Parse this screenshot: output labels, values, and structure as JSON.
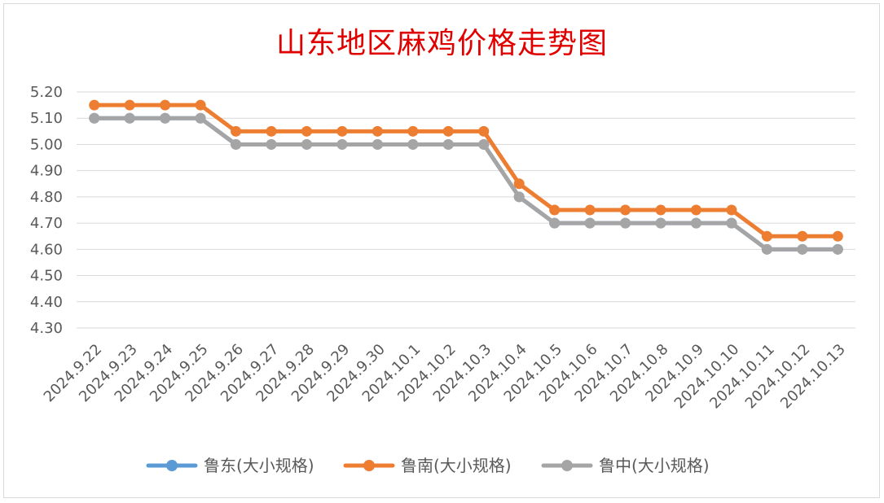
{
  "chart_data": {
    "type": "line",
    "title": "山东地区麻鸡价格走势图",
    "xlabel": "",
    "ylabel": "",
    "ylim": [
      4.3,
      5.2
    ],
    "yticks": [
      "5.20",
      "5.10",
      "5.00",
      "4.90",
      "4.80",
      "4.70",
      "4.60",
      "4.50",
      "4.40",
      "4.30"
    ],
    "grid": true,
    "legend_position": "bottom",
    "categories": [
      "2024.9.22",
      "2024.9.23",
      "2024.9.24",
      "2024.9.25",
      "2024.9.26",
      "2024.9.27",
      "2024.9.28",
      "2024.9.29",
      "2024.9.30",
      "2024.10.1",
      "2024.10.2",
      "2024.10.3",
      "2024.10.4",
      "2024.10.5",
      "2024.10.6",
      "2024.10.7",
      "2024.10.8",
      "2024.10.9",
      "2024.10.10",
      "2024.10.11",
      "2024.10.12",
      "2024.10.13"
    ],
    "series": [
      {
        "name": "鲁东(大小规格)",
        "color": "#5b9bd5",
        "values": [
          5.1,
          5.1,
          5.1,
          5.1,
          5.0,
          5.0,
          5.0,
          5.0,
          5.0,
          5.0,
          5.0,
          5.0,
          4.8,
          4.7,
          4.7,
          4.7,
          4.7,
          4.7,
          4.7,
          4.6,
          4.6,
          4.6
        ]
      },
      {
        "name": "鲁南(大小规格)",
        "color": "#ed7d31",
        "values": [
          5.15,
          5.15,
          5.15,
          5.15,
          5.05,
          5.05,
          5.05,
          5.05,
          5.05,
          5.05,
          5.05,
          5.05,
          4.85,
          4.75,
          4.75,
          4.75,
          4.75,
          4.75,
          4.75,
          4.65,
          4.65,
          4.65
        ]
      },
      {
        "name": "鲁中(大小规格)",
        "color": "#a5a5a5",
        "values": [
          5.1,
          5.1,
          5.1,
          5.1,
          5.0,
          5.0,
          5.0,
          5.0,
          5.0,
          5.0,
          5.0,
          5.0,
          4.8,
          4.7,
          4.7,
          4.7,
          4.7,
          4.7,
          4.7,
          4.6,
          4.6,
          4.6
        ]
      }
    ]
  }
}
